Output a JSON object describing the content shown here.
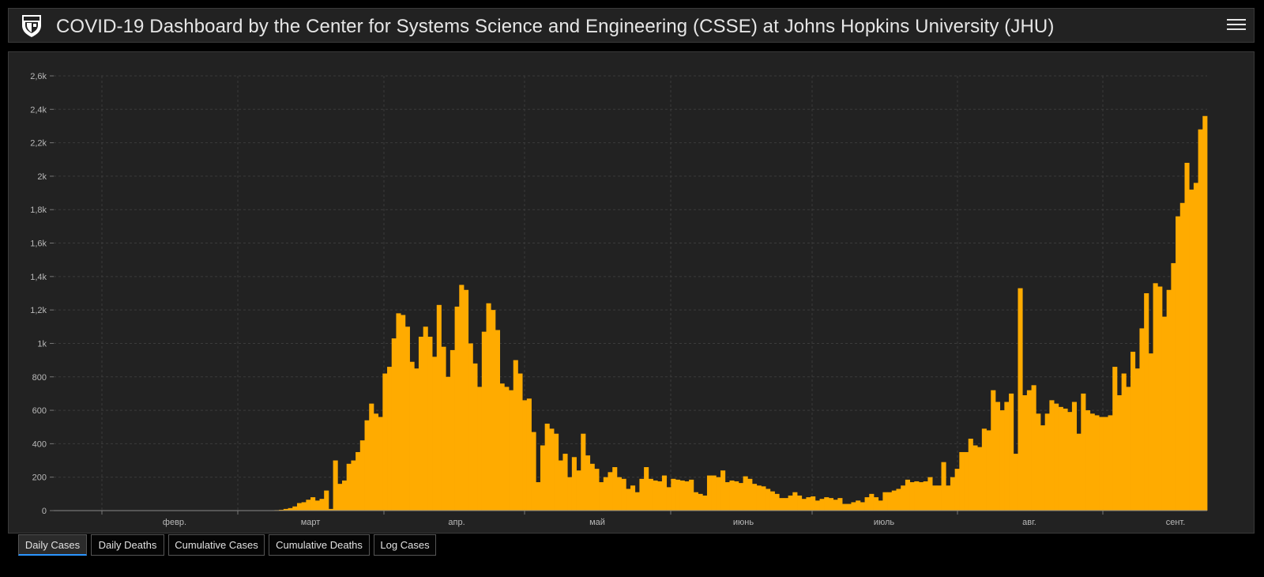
{
  "header": {
    "title": "COVID-19 Dashboard by the Center for Systems Science and Engineering (CSSE) at Johns Hopkins University (JHU)"
  },
  "tabs": [
    {
      "label": "Daily Cases",
      "active": true
    },
    {
      "label": "Daily Deaths",
      "active": false
    },
    {
      "label": "Cumulative Cases",
      "active": false
    },
    {
      "label": "Cumulative Deaths",
      "active": false
    },
    {
      "label": "Log Cases",
      "active": false
    }
  ],
  "colors": {
    "bar": "#ffab00",
    "background": "#222222",
    "grid": "#3b3b3b",
    "tab_active_underline": "#2b95ff"
  },
  "icons": {
    "logo": "university-shield-icon",
    "menu": "hamburger-menu-icon"
  },
  "chart_data": {
    "type": "bar",
    "title": "",
    "xlabel": "",
    "ylabel": "",
    "ylim": [
      0,
      2600
    ],
    "y_ticks": [
      "0",
      "200",
      "400",
      "600",
      "800",
      "1k",
      "1,2k",
      "1,4k",
      "1,6k",
      "1,8k",
      "2k",
      "2,2k",
      "2,4k",
      "2,6k"
    ],
    "x_ticks": [
      "февр.",
      "март",
      "апр.",
      "май",
      "июнь",
      "июль",
      "авг.",
      "сент."
    ],
    "grid": true,
    "values": [
      0,
      0,
      0,
      0,
      0,
      0,
      0,
      0,
      0,
      0,
      0,
      0,
      0,
      0,
      0,
      0,
      0,
      0,
      0,
      0,
      0,
      0,
      0,
      0,
      0,
      0,
      0,
      0,
      0,
      0,
      0,
      0,
      0,
      0,
      0,
      0,
      0,
      0,
      0,
      0,
      0,
      0,
      0,
      0,
      0,
      0,
      0,
      0,
      1,
      3,
      5,
      10,
      15,
      25,
      45,
      50,
      65,
      80,
      60,
      70,
      120,
      10,
      300,
      160,
      180,
      280,
      300,
      350,
      420,
      540,
      640,
      580,
      560,
      820,
      860,
      1030,
      1180,
      1170,
      1100,
      890,
      850,
      1040,
      1100,
      1040,
      920,
      1230,
      980,
      800,
      960,
      1220,
      1350,
      1320,
      1000,
      880,
      740,
      1070,
      1240,
      1200,
      1080,
      760,
      740,
      720,
      900,
      820,
      660,
      670,
      470,
      170,
      390,
      520,
      490,
      460,
      300,
      340,
      200,
      320,
      240,
      460,
      330,
      280,
      250,
      170,
      200,
      230,
      260,
      200,
      190,
      130,
      150,
      110,
      190,
      260,
      190,
      180,
      175,
      210,
      140,
      190,
      185,
      180,
      175,
      185,
      110,
      100,
      90,
      210,
      210,
      200,
      240,
      170,
      180,
      175,
      165,
      205,
      190,
      160,
      150,
      145,
      130,
      115,
      100,
      75,
      75,
      90,
      110,
      90,
      70,
      80,
      85,
      60,
      70,
      80,
      75,
      65,
      75,
      40,
      40,
      50,
      60,
      50,
      80,
      100,
      80,
      60,
      110,
      110,
      120,
      130,
      150,
      185,
      170,
      175,
      170,
      175,
      200,
      150,
      150,
      290,
      150,
      200,
      250,
      350,
      350,
      430,
      390,
      380,
      490,
      480,
      720,
      650,
      600,
      650,
      700,
      340,
      1330,
      690,
      720,
      750,
      580,
      510,
      580,
      660,
      640,
      620,
      610,
      590,
      650,
      460,
      700,
      600,
      580,
      570,
      560,
      560,
      570,
      860,
      690,
      820,
      740,
      950,
      850,
      1090,
      1300,
      940,
      1360,
      1340,
      1160,
      1320,
      1480,
      1760,
      1840,
      2080,
      1920,
      1960,
      2280,
      2360
    ]
  }
}
